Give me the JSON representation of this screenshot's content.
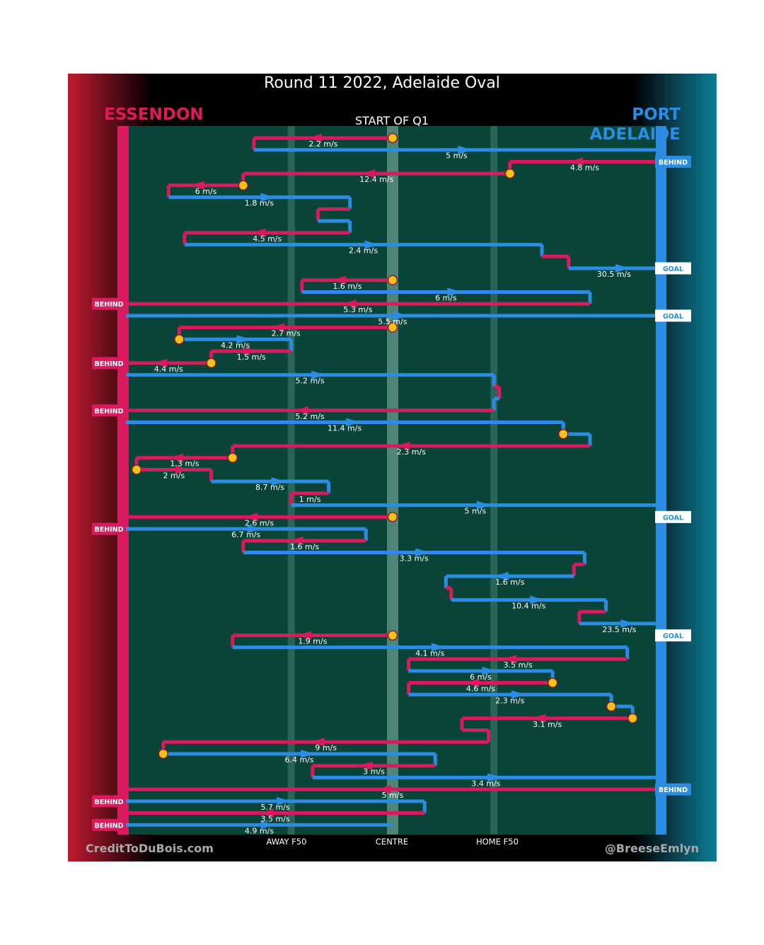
{
  "header": {
    "title": "Round 11 2022, Adelaide Oval",
    "quarter_label": "START OF Q1",
    "home_team": "ESSENDON",
    "away_team": "PORT ADELAIDE"
  },
  "footer": {
    "credit_left": "CreditToDuBois.com",
    "credit_right": "@BreeseEmlyn"
  },
  "colors": {
    "essendon": "#d81b5c",
    "port_adelaide": "#2a8de3",
    "field": "#084437",
    "contest": "#f2c21b"
  },
  "chart_data": {
    "type": "line",
    "xaxis": {
      "ticks": [
        {
          "label": "AWAY F50",
          "value": 0.31
        },
        {
          "label": "CENTRE",
          "value": 0.5
        },
        {
          "label": "HOME F50",
          "value": 0.69
        }
      ],
      "range": [
        0,
        1
      ]
    },
    "legend": [
      "ESSENDON",
      "PORT ADELAIDE"
    ],
    "outcomes": [
      {
        "label": "BEHIND",
        "team": "PORT ADELAIDE",
        "chain": 2
      },
      {
        "label": "GOAL",
        "team": "PORT ADELAIDE",
        "chain": 11
      },
      {
        "label": "BEHIND",
        "team": "ESSENDON",
        "chain": 14
      },
      {
        "label": "GOAL",
        "team": "PORT ADELAIDE",
        "chain": 15
      },
      {
        "label": "BEHIND",
        "team": "ESSENDON",
        "chain": 19
      },
      {
        "label": "BEHIND",
        "team": "ESSENDON",
        "chain": 23
      },
      {
        "label": "GOAL",
        "team": "PORT ADELAIDE",
        "chain": 32
      },
      {
        "label": "BEHIND",
        "team": "ESSENDON",
        "chain": 33
      },
      {
        "label": "GOAL",
        "team": "PORT ADELAIDE",
        "chain": 42
      },
      {
        "label": "BEHIND",
        "team": "PORT ADELAIDE",
        "chain": 55
      },
      {
        "label": "BEHIND",
        "team": "ESSENDON",
        "chain": 56
      },
      {
        "label": "BEHIND",
        "team": "ESSENDON",
        "chain": 58
      }
    ],
    "chains": [
      {
        "team": "ESSENDON",
        "from": 0.5,
        "to": 0.24,
        "speed": "2.2 m/s",
        "start_contest": true
      },
      {
        "team": "PORT ADELAIDE",
        "from": 0.24,
        "to": 1.0,
        "speed": "5 m/s"
      },
      {
        "team": "ESSENDON",
        "from": 1.0,
        "to": 0.72,
        "speed": "4.8 m/s"
      },
      {
        "team": "ESSENDON",
        "from": 0.72,
        "to": 0.22,
        "speed": "12.4 m/s",
        "start_contest": true
      },
      {
        "team": "ESSENDON",
        "from": 0.22,
        "to": 0.08,
        "speed": "6 m/s",
        "start_contest": true
      },
      {
        "team": "PORT ADELAIDE",
        "from": 0.08,
        "to": 0.42,
        "speed": "1.8 m/s"
      },
      {
        "team": "ESSENDON",
        "from": 0.42,
        "to": 0.36,
        "speed": ""
      },
      {
        "team": "PORT ADELAIDE",
        "from": 0.36,
        "to": 0.42,
        "speed": ""
      },
      {
        "team": "ESSENDON",
        "from": 0.42,
        "to": 0.11,
        "speed": "4.5 m/s"
      },
      {
        "team": "PORT ADELAIDE",
        "from": 0.11,
        "to": 0.78,
        "speed": "2.4 m/s"
      },
      {
        "team": "ESSENDON",
        "from": 0.78,
        "to": 0.83,
        "speed": ""
      },
      {
        "team": "PORT ADELAIDE",
        "from": 0.83,
        "to": 1.0,
        "speed": "30.5 m/s"
      },
      {
        "team": "ESSENDON",
        "from": 0.5,
        "to": 0.33,
        "speed": "1.6 m/s",
        "start_contest": true
      },
      {
        "team": "PORT ADELAIDE",
        "from": 0.33,
        "to": 0.87,
        "speed": "6 m/s"
      },
      {
        "team": "ESSENDON",
        "from": 0.87,
        "to": 0.0,
        "speed": "5.3 m/s"
      },
      {
        "team": "PORT ADELAIDE",
        "from": 0.0,
        "to": 1.0,
        "speed": "5.5 m/s"
      },
      {
        "team": "ESSENDON",
        "from": 0.5,
        "to": 0.1,
        "speed": "2.7 m/s",
        "start_contest": true
      },
      {
        "team": "PORT ADELAIDE",
        "from": 0.1,
        "to": 0.31,
        "speed": "4.2 m/s",
        "start_contest": true
      },
      {
        "team": "ESSENDON",
        "from": 0.31,
        "to": 0.16,
        "speed": "1.5 m/s"
      },
      {
        "team": "ESSENDON",
        "from": 0.16,
        "to": 0.0,
        "speed": "4.4 m/s",
        "start_contest": true
      },
      {
        "team": "PORT ADELAIDE",
        "from": 0.0,
        "to": 0.69,
        "speed": "5.2 m/s"
      },
      {
        "team": "ESSENDON",
        "from": 0.69,
        "to": 0.7,
        "speed": ""
      },
      {
        "team": "PORT ADELAIDE",
        "from": 0.7,
        "to": 0.69,
        "speed": ""
      },
      {
        "team": "ESSENDON",
        "from": 0.69,
        "to": 0.0,
        "speed": "5.2 m/s"
      },
      {
        "team": "PORT ADELAIDE",
        "from": 0.0,
        "to": 0.82,
        "speed": "11.4 m/s"
      },
      {
        "team": "PORT ADELAIDE",
        "from": 0.82,
        "to": 0.87,
        "speed": "",
        "start_contest": true
      },
      {
        "team": "ESSENDON",
        "from": 0.87,
        "to": 0.2,
        "speed": "2.3 m/s"
      },
      {
        "team": "ESSENDON",
        "from": 0.2,
        "to": 0.02,
        "speed": "1.3 m/s",
        "start_contest": true
      },
      {
        "team": "ESSENDON",
        "from": 0.02,
        "to": 0.16,
        "speed": "2 m/s",
        "start_contest": true
      },
      {
        "team": "PORT ADELAIDE",
        "from": 0.16,
        "to": 0.38,
        "speed": "8.7 m/s"
      },
      {
        "team": "ESSENDON",
        "from": 0.38,
        "to": 0.31,
        "speed": "1 m/s"
      },
      {
        "team": "PORT ADELAIDE",
        "from": 0.31,
        "to": 1.0,
        "speed": "5 m/s"
      },
      {
        "team": "ESSENDON",
        "from": 0.5,
        "to": 0.0,
        "speed": "2.6 m/s",
        "start_contest": true
      },
      {
        "team": "PORT ADELAIDE",
        "from": 0.0,
        "to": 0.45,
        "speed": "6.7 m/s"
      },
      {
        "team": "ESSENDON",
        "from": 0.45,
        "to": 0.22,
        "speed": "1.6 m/s"
      },
      {
        "team": "PORT ADELAIDE",
        "from": 0.22,
        "to": 0.86,
        "speed": "3.3 m/s"
      },
      {
        "team": "ESSENDON",
        "from": 0.86,
        "to": 0.84,
        "speed": ""
      },
      {
        "team": "PORT ADELAIDE",
        "from": 0.84,
        "to": 0.6,
        "speed": "1.6 m/s"
      },
      {
        "team": "ESSENDON",
        "from": 0.6,
        "to": 0.61,
        "speed": ""
      },
      {
        "team": "PORT ADELAIDE",
        "from": 0.61,
        "to": 0.9,
        "speed": "10.4 m/s"
      },
      {
        "team": "ESSENDON",
        "from": 0.9,
        "to": 0.85,
        "speed": ""
      },
      {
        "team": "PORT ADELAIDE",
        "from": 0.85,
        "to": 1.0,
        "speed": "23.5 m/s"
      },
      {
        "team": "ESSENDON",
        "from": 0.5,
        "to": 0.2,
        "speed": "1.9 m/s",
        "start_contest": true
      },
      {
        "team": "PORT ADELAIDE",
        "from": 0.2,
        "to": 0.94,
        "speed": "4.1 m/s"
      },
      {
        "team": "ESSENDON",
        "from": 0.94,
        "to": 0.53,
        "speed": "3.5 m/s"
      },
      {
        "team": "PORT ADELAIDE",
        "from": 0.53,
        "to": 0.8,
        "speed": "6 m/s"
      },
      {
        "team": "ESSENDON",
        "from": 0.8,
        "to": 0.53,
        "speed": "4.6 m/s",
        "start_contest": true
      },
      {
        "team": "PORT ADELAIDE",
        "from": 0.53,
        "to": 0.91,
        "speed": "2.3 m/s"
      },
      {
        "team": "PORT ADELAIDE",
        "from": 0.91,
        "to": 0.95,
        "speed": "",
        "start_contest": true
      },
      {
        "team": "ESSENDON",
        "from": 0.95,
        "to": 0.63,
        "speed": "3.1 m/s",
        "start_contest": true
      },
      {
        "team": "ESSENDON",
        "from": 0.63,
        "to": 0.68,
        "speed": ""
      },
      {
        "team": "ESSENDON",
        "from": 0.68,
        "to": 0.07,
        "speed": "9 m/s"
      },
      {
        "team": "PORT ADELAIDE",
        "from": 0.07,
        "to": 0.58,
        "speed": "6.4 m/s",
        "start_contest": true
      },
      {
        "team": "ESSENDON",
        "from": 0.58,
        "to": 0.35,
        "speed": "3 m/s"
      },
      {
        "team": "PORT ADELAIDE",
        "from": 0.35,
        "to": 1.0,
        "speed": "3.4 m/s"
      },
      {
        "team": "ESSENDON",
        "from": 1.0,
        "to": 0.0,
        "speed": "5 m/s"
      },
      {
        "team": "PORT ADELAIDE",
        "from": 0.0,
        "to": 0.56,
        "speed": "5.7 m/s"
      },
      {
        "team": "ESSENDON",
        "from": 0.56,
        "to": 0.0,
        "speed": "3.5 m/s"
      },
      {
        "team": "PORT ADELAIDE",
        "from": 0.0,
        "to": 0.5,
        "speed": "4.9 m/s"
      }
    ]
  }
}
